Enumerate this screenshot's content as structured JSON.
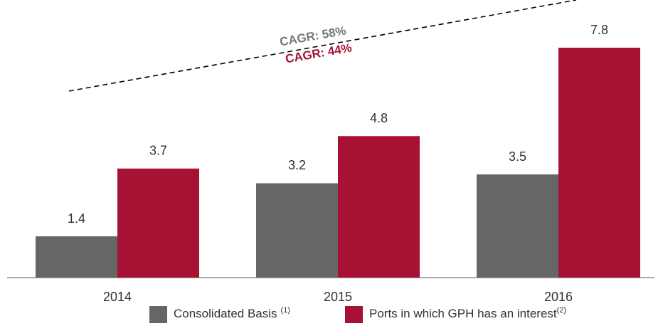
{
  "chart_data": {
    "type": "bar",
    "categories": [
      "2014",
      "2015",
      "2016"
    ],
    "series": [
      {
        "name": "Consolidated Basis",
        "footnote": "(1)",
        "color": "#666666",
        "values": [
          1.4,
          3.2,
          3.5
        ]
      },
      {
        "name": "Ports in which GPH has an interest",
        "footnote": "(2)",
        "color": "#a71234",
        "values": [
          3.7,
          4.8,
          7.8
        ]
      }
    ],
    "annotations": [
      {
        "text": "CAGR: 58%",
        "color": "#777777"
      },
      {
        "text": "CAGR: 44%",
        "color": "#a71234"
      }
    ]
  }
}
